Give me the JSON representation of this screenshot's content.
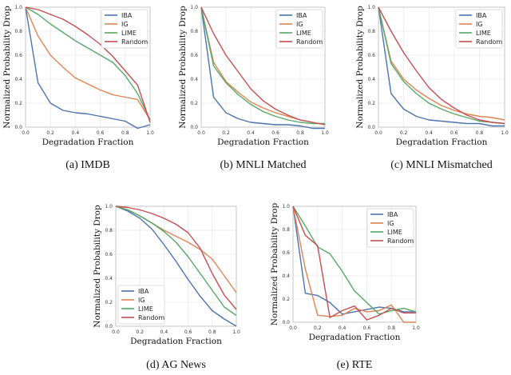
{
  "colors": {
    "IBA": "#4c72b0",
    "IG": "#dd8452",
    "LIME": "#55a868",
    "Random": "#c44e52"
  },
  "chart_data": [
    {
      "id": "imdb",
      "type": "line",
      "caption": "(a) IMDB",
      "xlabel": "Degradation Fraction",
      "ylabel": "Normalized Probability Drop",
      "xlim": [
        0,
        1
      ],
      "ylim": [
        0,
        1
      ],
      "xticks": [
        "0.0",
        "0.2",
        "0.4",
        "0.6",
        "0.8",
        "1.0"
      ],
      "yticks": [
        "0.0",
        "0.2",
        "0.4",
        "0.6",
        "0.8",
        "1.0"
      ],
      "legend_position": "top-right",
      "x": [
        0,
        0.1,
        0.2,
        0.3,
        0.4,
        0.5,
        0.6,
        0.7,
        0.8,
        0.9,
        1.0
      ],
      "series": [
        {
          "name": "IBA",
          "values": [
            1.0,
            0.37,
            0.2,
            0.14,
            0.12,
            0.11,
            0.09,
            0.07,
            0.05,
            -0.01,
            0.02
          ]
        },
        {
          "name": "IG",
          "values": [
            1.0,
            0.76,
            0.6,
            0.5,
            0.41,
            0.36,
            0.31,
            0.27,
            0.25,
            0.23,
            0.06
          ]
        },
        {
          "name": "LIME",
          "values": [
            1.0,
            0.94,
            0.86,
            0.79,
            0.72,
            0.66,
            0.6,
            0.54,
            0.43,
            0.28,
            0.06
          ]
        },
        {
          "name": "Random",
          "values": [
            1.0,
            0.98,
            0.94,
            0.9,
            0.84,
            0.77,
            0.69,
            0.59,
            0.47,
            0.35,
            0.04
          ]
        }
      ]
    },
    {
      "id": "mnli-matched",
      "type": "line",
      "caption": "(b) MNLI Matched",
      "xlabel": "Degradation Fraction",
      "ylabel": "Normalized Probability Drop",
      "xlim": [
        0,
        1
      ],
      "ylim": [
        0,
        1
      ],
      "xticks": [
        "0.0",
        "0.2",
        "0.4",
        "0.6",
        "0.8",
        "1.0"
      ],
      "yticks": [
        "0.0",
        "0.2",
        "0.4",
        "0.6",
        "0.8",
        "1.0"
      ],
      "legend_position": "top-right",
      "x": [
        0,
        0.1,
        0.2,
        0.3,
        0.4,
        0.5,
        0.6,
        0.7,
        0.8,
        0.9,
        1.0
      ],
      "series": [
        {
          "name": "IBA",
          "values": [
            1.0,
            0.25,
            0.12,
            0.07,
            0.04,
            0.03,
            0.02,
            0.02,
            0.01,
            -0.01,
            -0.01
          ]
        },
        {
          "name": "IG",
          "values": [
            1.0,
            0.54,
            0.38,
            0.29,
            0.21,
            0.16,
            0.12,
            0.09,
            0.06,
            0.04,
            0.02
          ]
        },
        {
          "name": "LIME",
          "values": [
            1.0,
            0.51,
            0.37,
            0.27,
            0.19,
            0.13,
            0.09,
            0.06,
            0.04,
            0.03,
            0.03
          ]
        },
        {
          "name": "Random",
          "values": [
            1.0,
            0.78,
            0.6,
            0.46,
            0.32,
            0.22,
            0.15,
            0.1,
            0.06,
            0.04,
            0.02
          ]
        }
      ]
    },
    {
      "id": "mnli-mismatched",
      "type": "line",
      "caption": "(c) MNLI Mismatched",
      "xlabel": "Degradation Fraction",
      "ylabel": "Normalized Probability Drop",
      "xlim": [
        0,
        1
      ],
      "ylim": [
        0,
        1
      ],
      "xticks": [
        "0.0",
        "0.2",
        "0.4",
        "0.6",
        "0.8",
        "1.0"
      ],
      "yticks": [
        "0.0",
        "0.2",
        "0.4",
        "0.6",
        "0.8",
        "1.0"
      ],
      "legend_position": "top-right",
      "x": [
        0,
        0.1,
        0.2,
        0.3,
        0.4,
        0.5,
        0.6,
        0.7,
        0.8,
        0.9,
        1.0
      ],
      "series": [
        {
          "name": "IBA",
          "values": [
            1.0,
            0.28,
            0.15,
            0.09,
            0.06,
            0.05,
            0.04,
            0.03,
            0.03,
            0.01,
            0.01
          ]
        },
        {
          "name": "IG",
          "values": [
            1.0,
            0.55,
            0.4,
            0.31,
            0.24,
            0.18,
            0.14,
            0.11,
            0.09,
            0.08,
            0.06
          ]
        },
        {
          "name": "LIME",
          "values": [
            1.0,
            0.53,
            0.38,
            0.28,
            0.2,
            0.15,
            0.11,
            0.08,
            0.05,
            0.04,
            0.03
          ]
        },
        {
          "name": "Random",
          "values": [
            1.0,
            0.8,
            0.62,
            0.47,
            0.33,
            0.23,
            0.16,
            0.1,
            0.06,
            0.04,
            0.03
          ]
        }
      ]
    },
    {
      "id": "ag-news",
      "type": "line",
      "caption": "(d) AG News",
      "xlabel": "Degradation Fraction",
      "ylabel": "Normalized Probability Drop",
      "xlim": [
        0,
        1
      ],
      "ylim": [
        0,
        1
      ],
      "xticks": [
        "0.0",
        "0.2",
        "0.4",
        "0.6",
        "0.8",
        "1.0"
      ],
      "yticks": [
        "0.0",
        "0.2",
        "0.4",
        "0.6",
        "0.8",
        "1.0"
      ],
      "legend_position": "bottom-left",
      "x": [
        0,
        0.1,
        0.2,
        0.3,
        0.4,
        0.5,
        0.6,
        0.7,
        0.8,
        0.9,
        1.0
      ],
      "series": [
        {
          "name": "IBA",
          "values": [
            1.0,
            0.96,
            0.9,
            0.81,
            0.68,
            0.54,
            0.39,
            0.25,
            0.13,
            0.06,
            0.0
          ]
        },
        {
          "name": "IG",
          "values": [
            1.0,
            0.97,
            0.92,
            0.86,
            0.8,
            0.75,
            0.7,
            0.64,
            0.56,
            0.42,
            0.28
          ]
        },
        {
          "name": "LIME",
          "values": [
            1.0,
            0.97,
            0.92,
            0.86,
            0.79,
            0.7,
            0.58,
            0.44,
            0.3,
            0.16,
            0.09
          ]
        },
        {
          "name": "Random",
          "values": [
            1.0,
            0.99,
            0.97,
            0.94,
            0.9,
            0.85,
            0.78,
            0.65,
            0.44,
            0.26,
            0.14
          ]
        }
      ]
    },
    {
      "id": "rte",
      "type": "line",
      "caption": "(e) RTE",
      "xlabel": "Degradation Fraction",
      "ylabel": "Normalized Probability Drop",
      "xlim": [
        0,
        1
      ],
      "ylim": [
        0,
        1
      ],
      "xticks": [
        "0.0",
        "0.2",
        "0.4",
        "0.6",
        "0.8",
        "1.0"
      ],
      "yticks": [
        "0.0",
        "0.2",
        "0.4",
        "0.6",
        "0.8",
        "1.0"
      ],
      "legend_position": "top-right",
      "x": [
        0,
        0.1,
        0.2,
        0.3,
        0.4,
        0.5,
        0.6,
        0.7,
        0.8,
        0.9,
        1.0
      ],
      "series": [
        {
          "name": "IBA",
          "values": [
            1.0,
            0.25,
            0.23,
            0.17,
            0.07,
            0.09,
            0.11,
            0.13,
            0.12,
            0.09,
            0.09
          ]
        },
        {
          "name": "IG",
          "values": [
            1.0,
            0.46,
            0.06,
            0.05,
            0.06,
            0.12,
            0.09,
            0.1,
            0.15,
            0.0,
            0.0
          ]
        },
        {
          "name": "LIME",
          "values": [
            1.0,
            0.83,
            0.65,
            0.59,
            0.44,
            0.27,
            0.17,
            0.07,
            0.1,
            0.12,
            0.09
          ]
        },
        {
          "name": "Random",
          "values": [
            1.0,
            0.75,
            0.66,
            0.04,
            0.1,
            0.14,
            0.02,
            0.06,
            0.12,
            0.08,
            0.08
          ]
        }
      ]
    }
  ]
}
